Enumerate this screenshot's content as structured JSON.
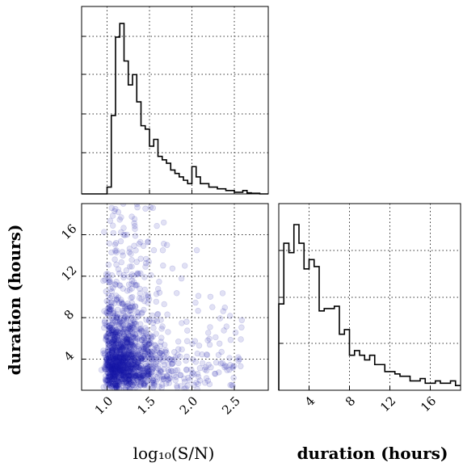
{
  "chart_data": [
    {
      "type": "histogram",
      "panel": "top-left",
      "x_scale": "log10",
      "xlim": [
        0.7,
        2.9
      ],
      "xticks": [
        1.0,
        1.5,
        2.0,
        2.5
      ],
      "show_x_tick_labels": false,
      "show_y_tick_labels": false,
      "grid": true,
      "bin_edges": [
        0.7,
        0.75,
        0.8,
        0.85,
        0.9,
        0.95,
        1.0,
        1.05,
        1.1,
        1.15,
        1.2,
        1.25,
        1.3,
        1.35,
        1.4,
        1.45,
        1.5,
        1.55,
        1.6,
        1.65,
        1.7,
        1.75,
        1.8,
        1.85,
        1.9,
        1.95,
        2.0,
        2.05,
        2.1,
        2.15,
        2.2,
        2.25,
        2.3,
        2.35,
        2.4,
        2.45,
        2.5,
        2.55,
        2.6,
        2.65,
        2.7,
        2.75,
        2.8,
        2.85,
        2.9
      ],
      "counts": [
        0,
        0,
        0,
        0,
        0,
        0,
        2,
        23,
        46,
        50,
        39,
        32,
        35,
        27,
        20,
        19,
        14,
        16,
        11,
        10,
        9,
        7,
        6,
        5,
        4,
        3,
        8,
        5,
        3,
        3,
        2,
        2,
        1.5,
        1.5,
        1,
        1,
        0.5,
        0.5,
        1,
        0.3,
        0.2,
        0.2,
        0,
        0
      ],
      "ylim": [
        0,
        55
      ]
    },
    {
      "type": "scatter",
      "panel": "bottom-left",
      "x_scale": "log10",
      "xlim": [
        0.7,
        2.9
      ],
      "ylim": [
        1,
        19
      ],
      "xticks": [
        1.0,
        1.5,
        2.0,
        2.5
      ],
      "xtick_labels": [
        "1.0",
        "1.5",
        "2.0",
        "2.5"
      ],
      "yticks": [
        4,
        8,
        12,
        16
      ],
      "ytick_labels": [
        "4",
        "8",
        "12",
        "16"
      ],
      "xlabel": "log₁₀(S/N)",
      "ylabel": "duration (hours)",
      "point_color": "#1a1aa8",
      "grid": true,
      "n_points": 1500,
      "distribution_note": "points cluster around log10(S/N) ≈ 1.0–1.5 and duration ≈ 2–7 h with a tail toward higher S/N and longer durations"
    },
    {
      "type": "histogram",
      "panel": "bottom-right",
      "xlim": [
        1,
        19
      ],
      "xticks": [
        4,
        8,
        12,
        16
      ],
      "xtick_labels": [
        "4",
        "8",
        "12",
        "16"
      ],
      "xlabel": "duration (hours)",
      "show_y_tick_labels": false,
      "grid": true,
      "bin_edges": [
        1,
        1.5,
        2,
        2.5,
        3,
        3.5,
        4,
        4.5,
        5,
        5.5,
        6,
        6.5,
        7,
        7.5,
        8,
        8.5,
        9,
        9.5,
        10,
        10.5,
        11,
        11.5,
        12,
        12.5,
        13,
        13.5,
        14,
        14.5,
        15,
        15.5,
        16,
        16.5,
        17,
        17.5,
        18,
        18.5,
        19
      ],
      "counts": [
        37,
        63,
        59,
        71,
        63,
        52,
        56,
        53,
        34,
        35,
        35,
        36,
        24,
        26,
        15,
        17,
        15,
        13,
        15,
        11,
        11,
        8,
        8,
        7,
        6,
        6,
        4,
        4,
        5,
        3,
        3,
        4,
        3,
        3,
        4,
        2
      ],
      "ylim": [
        0,
        80
      ]
    }
  ]
}
